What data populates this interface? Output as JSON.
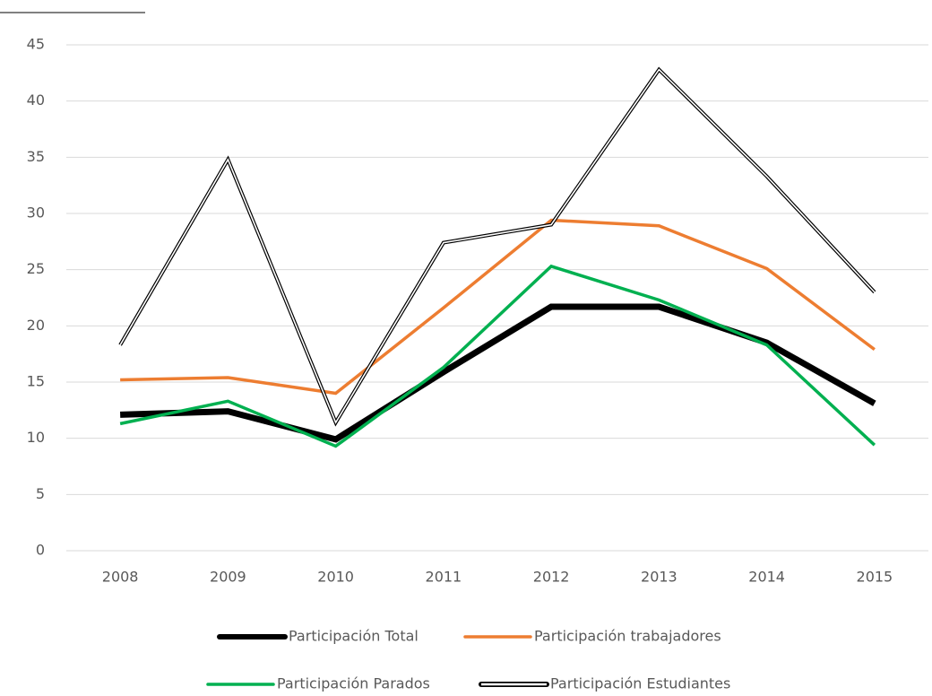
{
  "chart_data": {
    "type": "line",
    "categories": [
      "2008",
      "2009",
      "2010",
      "2011",
      "2012",
      "2013",
      "2014",
      "2015"
    ],
    "series": [
      {
        "name": "Participación Total",
        "color": "#000000",
        "line_width": 7,
        "style": "solid",
        "values": [
          12.1,
          12.4,
          9.9,
          15.9,
          21.7,
          21.7,
          18.5,
          13.1
        ]
      },
      {
        "name": "Participación trabajadores",
        "color": "#ed7d31",
        "line_width": 3.5,
        "style": "solid",
        "values": [
          15.2,
          15.4,
          14.0,
          21.6,
          29.4,
          28.9,
          25.1,
          17.9
        ]
      },
      {
        "name": "Participación Parados",
        "color": "#00b050",
        "line_width": 3.5,
        "style": "solid",
        "values": [
          11.3,
          13.3,
          9.3,
          16.3,
          25.3,
          22.3,
          18.3,
          9.4
        ]
      },
      {
        "name": "Participación Estudiantes",
        "color": "#000000",
        "line_width": 4,
        "style": "double",
        "values": [
          18.3,
          34.8,
          11.4,
          27.4,
          29.0,
          42.8,
          33.3,
          23.0
        ]
      }
    ],
    "ylim": [
      0,
      45
    ],
    "yticks": [
      0,
      5,
      10,
      15,
      20,
      25,
      30,
      35,
      40,
      45
    ],
    "grid": true,
    "legend": "bottom"
  }
}
